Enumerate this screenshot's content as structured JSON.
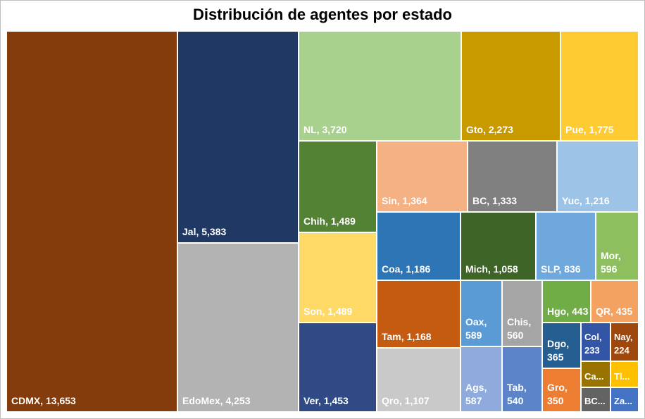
{
  "chart_data": {
    "type": "treemap",
    "title": "Distribución de agentes por estado",
    "items": [
      {
        "label": "CDMX, 13,653",
        "name": "CDMX",
        "value": 13653,
        "color": "#843C0C"
      },
      {
        "label": "Jal, 5,383",
        "name": "Jal",
        "value": 5383,
        "color": "#203864"
      },
      {
        "label": "EdoMex, 4,253",
        "name": "EdoMex",
        "value": 4253,
        "color": "#B3B3B3"
      },
      {
        "label": "NL, 3,720",
        "name": "NL",
        "value": 3720,
        "color": "#A9D18E"
      },
      {
        "label": "Gto, 2,273",
        "name": "Gto",
        "value": 2273,
        "color": "#C99A00"
      },
      {
        "label": "Pue, 1,775",
        "name": "Pue",
        "value": 1775,
        "color": "#FFCB33"
      },
      {
        "label": "Chih, 1,489",
        "name": "Chih",
        "value": 1489,
        "color": "#548235"
      },
      {
        "label": "Son, 1,489",
        "name": "Son",
        "value": 1489,
        "color": "#FFD966"
      },
      {
        "label": "Ver, 1,453",
        "name": "Ver",
        "value": 1453,
        "color": "#2F4A85"
      },
      {
        "label": "Sin, 1,364",
        "name": "Sin",
        "value": 1364,
        "color": "#F4B183"
      },
      {
        "label": "BC, 1,333",
        "name": "BC",
        "value": 1333,
        "color": "#808080"
      },
      {
        "label": "Yuc, 1,216",
        "name": "Yuc",
        "value": 1216,
        "color": "#9DC3E6"
      },
      {
        "label": "Coa, 1,186",
        "name": "Coa",
        "value": 1186,
        "color": "#2E75B6"
      },
      {
        "label": "Tam, 1,168",
        "name": "Tam",
        "value": 1168,
        "color": "#C55A11"
      },
      {
        "label": "Qro, 1,107",
        "name": "Qro",
        "value": 1107,
        "color": "#C9C9C9"
      },
      {
        "label": "Mich, 1,058",
        "name": "Mich",
        "value": 1058,
        "color": "#3F6428"
      },
      {
        "label": "SLP, 836",
        "name": "SLP",
        "value": 836,
        "color": "#6FA8DC"
      },
      {
        "label": "Mor,\n596",
        "name": "Mor",
        "value": 596,
        "color": "#8DBF5E"
      },
      {
        "label": "Oax,\n589",
        "name": "Oax",
        "value": 589,
        "color": "#5B9BD5"
      },
      {
        "label": "Chis,\n560",
        "name": "Chis",
        "value": 560,
        "color": "#A5A5A5"
      },
      {
        "label": "Ags,\n587",
        "name": "Ags",
        "value": 587,
        "color": "#8FAADC"
      },
      {
        "label": "Tab,\n540",
        "name": "Tab",
        "value": 540,
        "color": "#5B85C8"
      },
      {
        "label": "Hgo, 443",
        "name": "Hgo",
        "value": 443,
        "color": "#70AD47"
      },
      {
        "label": "QR, 435",
        "name": "QR",
        "value": 435,
        "color": "#F4A261"
      },
      {
        "label": "Dgo,\n365",
        "name": "Dgo",
        "value": 365,
        "color": "#255E91"
      },
      {
        "label": "Gro,\n350",
        "name": "Gro",
        "value": 350,
        "color": "#ED7D31"
      },
      {
        "label": "Col,\n233",
        "name": "Col",
        "value": 233,
        "color": "#3355A6"
      },
      {
        "label": "Nay,\n224",
        "name": "Nay",
        "value": 224,
        "color": "#9E480E"
      },
      {
        "label": "Ca...",
        "name": "Ca...",
        "value": null,
        "color": "#997300"
      },
      {
        "label": "Tl...",
        "name": "Tl...",
        "value": null,
        "color": "#FFC000"
      },
      {
        "label": "BC...",
        "name": "BC...",
        "value": null,
        "color": "#636363"
      },
      {
        "label": "Za...",
        "name": "Za...",
        "value": null,
        "color": "#4472C4"
      }
    ]
  }
}
